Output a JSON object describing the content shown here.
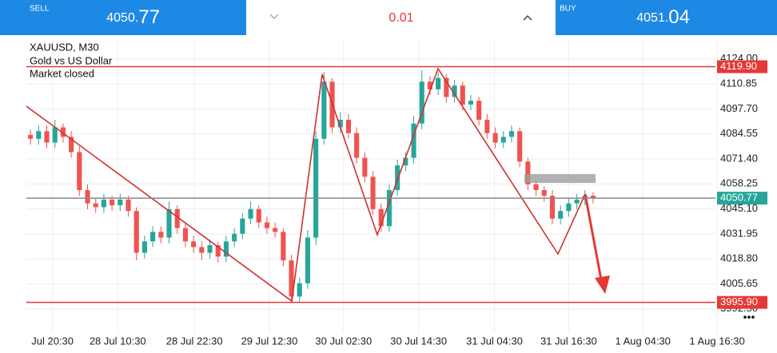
{
  "header": {
    "sell": {
      "label": "SELL",
      "price_main": "4050.",
      "price_big": "77"
    },
    "spread": "0.01",
    "buy": {
      "label": "BUY",
      "price_main": "4051.",
      "price_big": "04"
    }
  },
  "chart_data": {
    "type": "candlestick",
    "title": "XAUUSD, M30",
    "subtitle": "Gold vs US Dollar",
    "status": "Market closed",
    "up_color": "#26a69a",
    "down_color": "#ef5350",
    "xlim": [
      -0.5,
      84
    ],
    "ylim": [
      3980,
      4134
    ],
    "xticks": [
      {
        "value": 2.7,
        "label": "Jul 20:30"
      },
      {
        "value": 10.7,
        "label": "28 Jul 10:30"
      },
      {
        "value": 20.1,
        "label": "28 Jul 22:30"
      },
      {
        "value": 29.3,
        "label": "29 Jul 12:30"
      },
      {
        "value": 38.4,
        "label": "30 Jul 02:30"
      },
      {
        "value": 47.6,
        "label": "30 Jul 14:30"
      },
      {
        "value": 56.9,
        "label": "31 Jul 04:30"
      },
      {
        "value": 66,
        "label": "31 Jul 16:30"
      },
      {
        "value": 75.1,
        "label": "1 Aug 04:30"
      },
      {
        "value": 84.2,
        "label": "1 Aug 16:30"
      }
    ],
    "yticks": [
      {
        "value": 4124,
        "label": "4124.00"
      },
      {
        "value": 4110.85,
        "label": "4110.85"
      },
      {
        "value": 4097.7,
        "label": "4097.70"
      },
      {
        "value": 4084.55,
        "label": "4084.55"
      },
      {
        "value": 4071.4,
        "label": "4071.40"
      },
      {
        "value": 4058.25,
        "label": "4058.25"
      },
      {
        "value": 4045.1,
        "label": "4045.10"
      },
      {
        "value": 4031.95,
        "label": "4031.95"
      },
      {
        "value": 4018.8,
        "label": "4018.80"
      },
      {
        "value": 4005.65,
        "label": "4005.65"
      },
      {
        "value": 3992.5,
        "label": "3992.50"
      }
    ],
    "grid": true,
    "levels": [
      {
        "value": 4119.9,
        "label": "4119.90",
        "color": "#e53935"
      },
      {
        "value": 3995.9,
        "label": "3995.90",
        "color": "#e53935"
      },
      {
        "value": 4050.77,
        "label": "4050.77",
        "color": "#26a69a"
      }
    ],
    "open": [
      4084,
      4082,
      4086,
      4080,
      4088,
      4083,
      4075,
      4055,
      4048,
      4046,
      4050,
      4047,
      4050,
      4044,
      4022,
      4028,
      4033,
      4030,
      4045,
      4035,
      4028,
      4025,
      4022,
      4026,
      4020,
      4028,
      4032,
      4040,
      4045,
      4038,
      4035,
      4033,
      4018,
      3999,
      4006,
      4030,
      4082,
      4112,
      4088,
      4092,
      4085,
      4072,
      4062,
      4045,
      4036,
      4055,
      4068,
      4072,
      4090,
      4112,
      4108,
      4114,
      4104,
      4110,
      4100,
      4102,
      4092,
      4085,
      4080,
      4083,
      4086,
      4070,
      4058,
      4055,
      4052,
      4040,
      4044,
      4048,
      4050,
      4052
    ],
    "high": [
      4087,
      4089,
      4089,
      4092,
      4090,
      4086,
      4078,
      4058,
      4051,
      4053,
      4052,
      4053,
      4052,
      4046,
      4031,
      4036,
      4036,
      4049,
      4047,
      4038,
      4031,
      4028,
      4029,
      4028,
      4031,
      4035,
      4043,
      4049,
      4047,
      4041,
      4038,
      4035,
      4021,
      4009,
      4034,
      4086,
      4117,
      4114,
      4096,
      4095,
      4088,
      4075,
      4065,
      4048,
      4058,
      4071,
      4075,
      4094,
      4118,
      4115,
      4117,
      4116,
      4113,
      4112,
      4105,
      4104,
      4095,
      4088,
      4086,
      4089,
      4088,
      4072,
      4060,
      4057,
      4055,
      4047,
      4051,
      4053,
      4055,
      4054
    ],
    "low": [
      4079,
      4079,
      4077,
      4077,
      4080,
      4072,
      4052,
      4045,
      4043,
      4043,
      4044,
      4044,
      4041,
      4018,
      4019,
      4025,
      4027,
      4027,
      4032,
      4025,
      4022,
      4018,
      4019,
      4017,
      4017,
      4025,
      4029,
      4037,
      4035,
      4032,
      4030,
      4015,
      3996,
      3996,
      4003,
      4026,
      4079,
      4085,
      4085,
      4082,
      4069,
      4059,
      4042,
      4033,
      4033,
      4052,
      4065,
      4069,
      4087,
      4105,
      4105,
      4101,
      4101,
      4097,
      4097,
      4089,
      4082,
      4077,
      4077,
      4080,
      4067,
      4055,
      4052,
      4049,
      4037,
      4037,
      4041,
      4045,
      4047,
      4048
    ],
    "close": [
      4082,
      4086,
      4080,
      4088,
      4083,
      4075,
      4055,
      4048,
      4046,
      4050,
      4047,
      4050,
      4044,
      4022,
      4028,
      4033,
      4030,
      4045,
      4035,
      4028,
      4025,
      4022,
      4026,
      4020,
      4028,
      4032,
      4040,
      4045,
      4038,
      4035,
      4033,
      4018,
      3999,
      4006,
      4030,
      4082,
      4112,
      4088,
      4092,
      4085,
      4072,
      4062,
      4045,
      4036,
      4055,
      4068,
      4072,
      4090,
      4112,
      4108,
      4114,
      4104,
      4110,
      4100,
      4102,
      4092,
      4085,
      4080,
      4083,
      4086,
      4070,
      4058,
      4055,
      4052,
      4040,
      4044,
      4048,
      4050,
      4052,
      4050.77
    ]
  }
}
